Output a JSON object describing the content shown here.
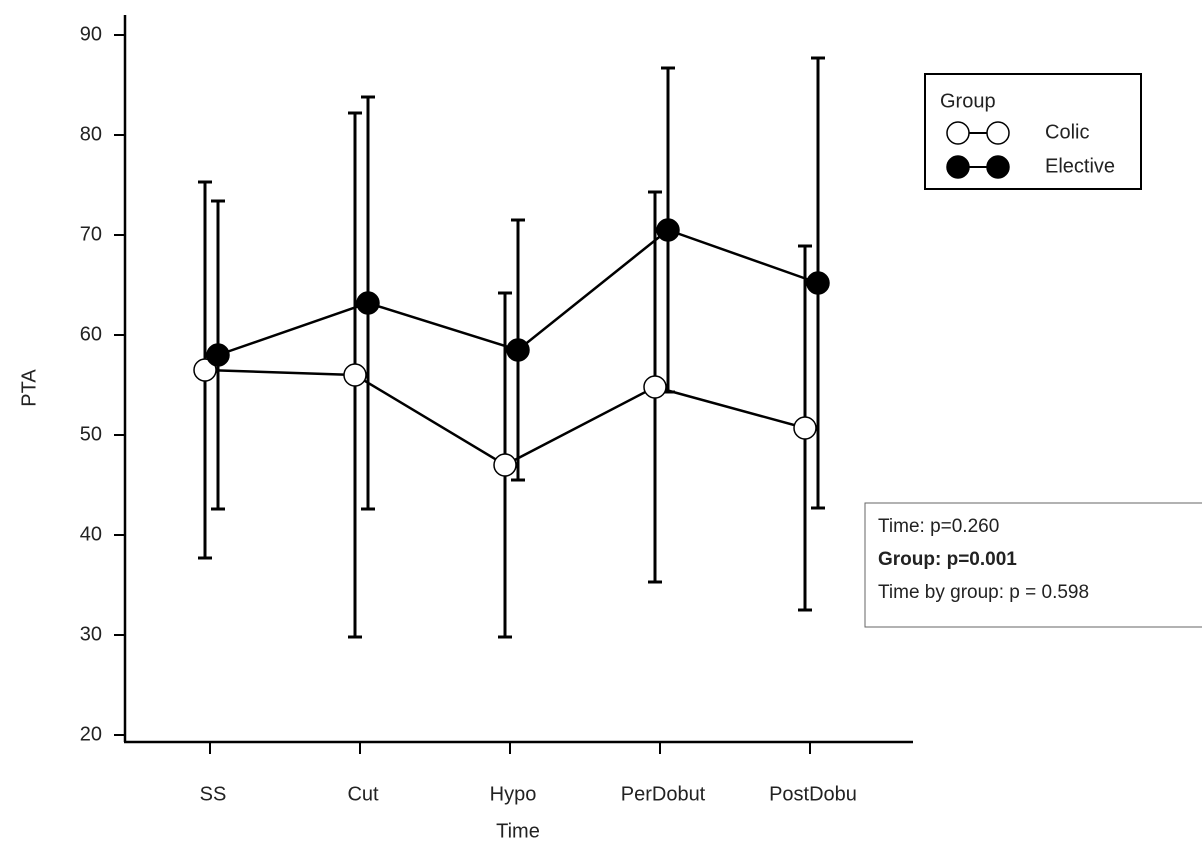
{
  "chart_data": {
    "type": "line",
    "x_label": "Time",
    "y_label": "PTA",
    "categories": [
      "SS",
      "Cut",
      "Hypo",
      "PerDobut",
      "PostDobu"
    ],
    "ylim": [
      20,
      90
    ],
    "yticks": [
      20,
      30,
      40,
      50,
      60,
      70,
      80,
      90
    ],
    "legend_title": "Group",
    "legend_position": "upper right",
    "series": [
      {
        "name": "Colic",
        "color": "#000000",
        "marker_fill": "#ffffff",
        "values": [
          56.5,
          56,
          47,
          54.8,
          50.7
        ],
        "errors": [
          18.8,
          26.2,
          17.2,
          19.5,
          18.2
        ]
      },
      {
        "name": "Elective",
        "color": "#000000",
        "marker_fill": "#000000",
        "values": [
          58,
          63.2,
          58.5,
          70.5,
          65.2
        ],
        "errors": [
          15.4,
          20.6,
          13,
          16.2,
          22.5
        ]
      }
    ],
    "annotations": [
      "Time: p=0.260",
      "Group: p=0.001",
      "Time by group: p = 0.598"
    ]
  }
}
